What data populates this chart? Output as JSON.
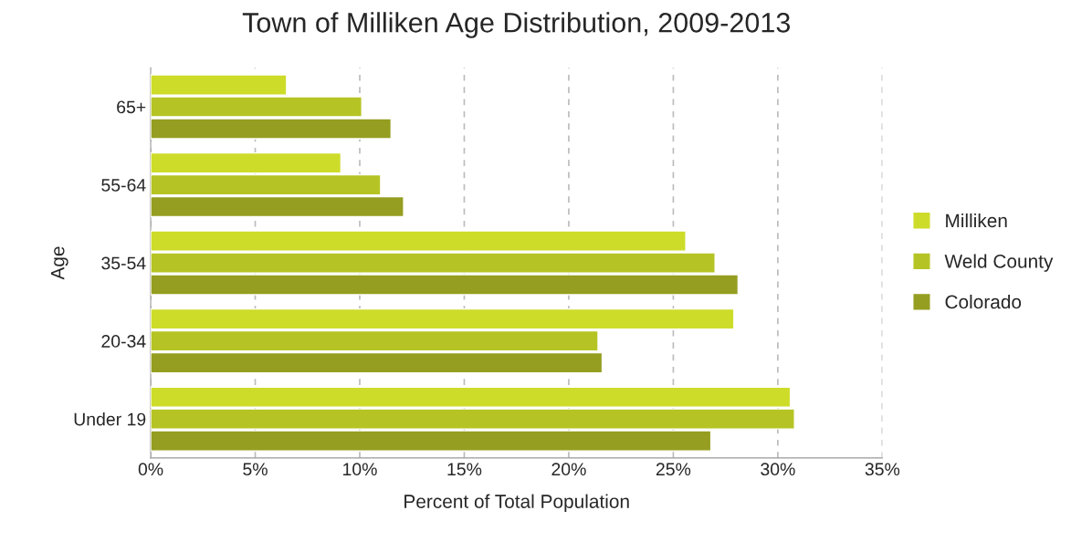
{
  "chart_data": {
    "type": "bar",
    "orientation": "horizontal",
    "title": "Town of Milliken Age Distribution, 2009-2013",
    "xlabel": "Percent of Total Population",
    "ylabel": "Age",
    "categories": [
      "65+",
      "55-64",
      "35-54",
      "20-34",
      "Under 19"
    ],
    "series": [
      {
        "name": "Milliken",
        "color": "#cddc29",
        "values": [
          6.5,
          9.1,
          25.6,
          27.9,
          30.6
        ]
      },
      {
        "name": "Weld County",
        "color": "#b5c424",
        "values": [
          10.1,
          11.0,
          27.0,
          21.4,
          30.8
        ]
      },
      {
        "name": "Colorado",
        "color": "#959e20",
        "values": [
          11.5,
          12.1,
          28.1,
          21.6,
          26.8
        ]
      }
    ],
    "xlim": [
      0,
      35
    ],
    "xticks": [
      {
        "value": 0,
        "label": "0%"
      },
      {
        "value": 5,
        "label": "5%"
      },
      {
        "value": 10,
        "label": "10%"
      },
      {
        "value": 15,
        "label": "15%"
      },
      {
        "value": 20,
        "label": "20%"
      },
      {
        "value": 25,
        "label": "25%"
      },
      {
        "value": 30,
        "label": "30%"
      },
      {
        "value": 35,
        "label": "35%"
      }
    ],
    "grid": "x",
    "legend": "right"
  }
}
